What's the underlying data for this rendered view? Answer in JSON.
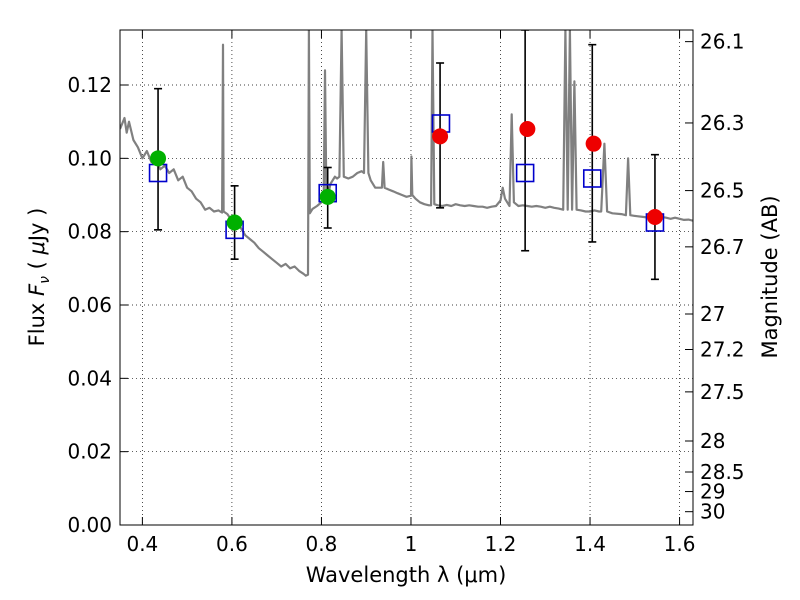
{
  "chart_data": {
    "type": "scatter",
    "xlabel": "Wavelength  λ (μm)",
    "ylabel": "Flux  F_ν  ( μJy )",
    "ylabel_parts": [
      "Flux  ",
      "F",
      "ν",
      "  ( ",
      "μ",
      "Jy )"
    ],
    "y2label": "Magnitude (AB)",
    "xlim": [
      0.35,
      1.63
    ],
    "ylim": [
      0.0,
      0.135
    ],
    "x_ticks": [
      0.4,
      0.6,
      0.8,
      1.0,
      1.2,
      1.4,
      1.6
    ],
    "x_tick_labels": [
      "0.4",
      "0.6",
      "0.8",
      "1",
      "1.2",
      "1.4",
      "1.6"
    ],
    "y_ticks": [
      0.0,
      0.02,
      0.04,
      0.06,
      0.08,
      0.1,
      0.12
    ],
    "y_tick_labels": [
      "0.00",
      "0.02",
      "0.04",
      "0.06",
      "0.08",
      "0.10",
      "0.12"
    ],
    "y2_ticks": [
      {
        "mag": 26.1,
        "label": "26.1"
      },
      {
        "mag": 26.3,
        "label": "26.3"
      },
      {
        "mag": 26.5,
        "label": "26.5"
      },
      {
        "mag": 26.7,
        "label": "26.7"
      },
      {
        "mag": 27.0,
        "label": "27"
      },
      {
        "mag": 27.2,
        "label": "27.2"
      },
      {
        "mag": 27.5,
        "label": "27.5"
      },
      {
        "mag": 28.0,
        "label": "28"
      },
      {
        "mag": 28.5,
        "label": "28.5"
      },
      {
        "mag": 29.0,
        "label": "29"
      },
      {
        "mag": 30.0,
        "label": "30"
      }
    ],
    "grid": true,
    "grid_style": "dotted",
    "template_spectrum": {
      "color": "#808080",
      "points": [
        [
          0.35,
          0.108
        ],
        [
          0.36,
          0.111
        ],
        [
          0.365,
          0.107
        ],
        [
          0.37,
          0.11
        ],
        [
          0.38,
          0.105
        ],
        [
          0.39,
          0.103
        ],
        [
          0.4,
          0.1
        ],
        [
          0.41,
          0.102
        ],
        [
          0.42,
          0.099
        ],
        [
          0.43,
          0.1
        ],
        [
          0.44,
          0.097
        ],
        [
          0.45,
          0.098
        ],
        [
          0.46,
          0.096
        ],
        [
          0.47,
          0.097
        ],
        [
          0.48,
          0.094
        ],
        [
          0.49,
          0.095
        ],
        [
          0.5,
          0.092
        ],
        [
          0.51,
          0.091
        ],
        [
          0.52,
          0.089
        ],
        [
          0.53,
          0.088
        ],
        [
          0.54,
          0.086
        ],
        [
          0.55,
          0.0865
        ],
        [
          0.56,
          0.0855
        ],
        [
          0.57,
          0.0858
        ],
        [
          0.578,
          0.0852
        ],
        [
          0.58,
          0.131
        ],
        [
          0.5815,
          0.0855
        ],
        [
          0.59,
          0.0848
        ],
        [
          0.6,
          0.083
        ],
        [
          0.61,
          0.082
        ],
        [
          0.62,
          0.081
        ],
        [
          0.63,
          0.079
        ],
        [
          0.64,
          0.078
        ],
        [
          0.65,
          0.077
        ],
        [
          0.66,
          0.0755
        ],
        [
          0.67,
          0.0745
        ],
        [
          0.68,
          0.0735
        ],
        [
          0.69,
          0.0725
        ],
        [
          0.7,
          0.0715
        ],
        [
          0.71,
          0.0705
        ],
        [
          0.72,
          0.0712
        ],
        [
          0.73,
          0.07
        ],
        [
          0.74,
          0.0705
        ],
        [
          0.75,
          0.0693
        ],
        [
          0.76,
          0.0685
        ],
        [
          0.765,
          0.068
        ],
        [
          0.77,
          0.0683
        ],
        [
          0.772,
          0.135
        ],
        [
          0.774,
          0.085
        ],
        [
          0.78,
          0.0862
        ],
        [
          0.79,
          0.087
        ],
        [
          0.8,
          0.088
        ],
        [
          0.805,
          0.0885
        ],
        [
          0.808,
          0.124
        ],
        [
          0.811,
          0.089
        ],
        [
          0.816,
          0.0905
        ],
        [
          0.82,
          0.093
        ],
        [
          0.83,
          0.095
        ],
        [
          0.835,
          0.0945
        ],
        [
          0.84,
          0.095
        ],
        [
          0.845,
          0.135
        ],
        [
          0.85,
          0.095
        ],
        [
          0.86,
          0.0945
        ],
        [
          0.87,
          0.095
        ],
        [
          0.88,
          0.096
        ],
        [
          0.89,
          0.0965
        ],
        [
          0.895,
          0.096
        ],
        [
          0.9,
          0.135
        ],
        [
          0.905,
          0.096
        ],
        [
          0.91,
          0.094
        ],
        [
          0.92,
          0.092
        ],
        [
          0.93,
          0.092
        ],
        [
          0.935,
          0.092
        ],
        [
          0.938,
          0.099
        ],
        [
          0.941,
          0.092
        ],
        [
          0.95,
          0.0915
        ],
        [
          0.96,
          0.091
        ],
        [
          0.97,
          0.0905
        ],
        [
          0.98,
          0.09
        ],
        [
          0.99,
          0.0895
        ],
        [
          1.0,
          0.0898
        ],
        [
          1.001,
          0.1005
        ],
        [
          1.003,
          0.09
        ],
        [
          1.01,
          0.089
        ],
        [
          1.02,
          0.088
        ],
        [
          1.03,
          0.0875
        ],
        [
          1.04,
          0.0872
        ],
        [
          1.045,
          0.0872
        ],
        [
          1.048,
          0.135
        ],
        [
          1.052,
          0.0875
        ],
        [
          1.06,
          0.0872
        ],
        [
          1.07,
          0.087
        ],
        [
          1.08,
          0.0873
        ],
        [
          1.09,
          0.087
        ],
        [
          1.1,
          0.0875
        ],
        [
          1.11,
          0.0872
        ],
        [
          1.12,
          0.087
        ],
        [
          1.13,
          0.0872
        ],
        [
          1.14,
          0.087
        ],
        [
          1.15,
          0.0868
        ],
        [
          1.16,
          0.0868
        ],
        [
          1.17,
          0.0865
        ],
        [
          1.18,
          0.0868
        ],
        [
          1.19,
          0.087
        ],
        [
          1.2,
          0.0885
        ],
        [
          1.205,
          0.092
        ],
        [
          1.21,
          0.089
        ],
        [
          1.22,
          0.087
        ],
        [
          1.225,
          0.112
        ],
        [
          1.23,
          0.088
        ],
        [
          1.24,
          0.087
        ],
        [
          1.25,
          0.0872
        ],
        [
          1.26,
          0.087
        ],
        [
          1.27,
          0.0868
        ],
        [
          1.28,
          0.087
        ],
        [
          1.29,
          0.0868
        ],
        [
          1.3,
          0.0865
        ],
        [
          1.31,
          0.0868
        ],
        [
          1.32,
          0.0865
        ],
        [
          1.33,
          0.0863
        ],
        [
          1.34,
          0.086
        ],
        [
          1.345,
          0.135
        ],
        [
          1.35,
          0.086
        ],
        [
          1.355,
          0.135
        ],
        [
          1.36,
          0.086
        ],
        [
          1.365,
          0.121
        ],
        [
          1.37,
          0.086
        ],
        [
          1.38,
          0.0858
        ],
        [
          1.39,
          0.0855
        ],
        [
          1.4,
          0.0855
        ],
        [
          1.41,
          0.0858
        ],
        [
          1.42,
          0.0855
        ],
        [
          1.425,
          0.0855
        ],
        [
          1.432,
          0.104
        ],
        [
          1.438,
          0.0855
        ],
        [
          1.45,
          0.085
        ],
        [
          1.47,
          0.0848
        ],
        [
          1.48,
          0.0845
        ],
        [
          1.485,
          0.1
        ],
        [
          1.49,
          0.0845
        ],
        [
          1.5,
          0.0843
        ],
        [
          1.52,
          0.084
        ],
        [
          1.53,
          0.0838
        ],
        [
          1.54,
          0.0842
        ],
        [
          1.55,
          0.0838
        ],
        [
          1.56,
          0.084
        ],
        [
          1.57,
          0.0838
        ],
        [
          1.58,
          0.0835
        ],
        [
          1.59,
          0.0838
        ],
        [
          1.6,
          0.0835
        ],
        [
          1.61,
          0.0832
        ],
        [
          1.62,
          0.0833
        ],
        [
          1.63,
          0.083
        ]
      ]
    },
    "error_bars": [
      {
        "x": 0.435,
        "low": 0.0805,
        "high": 0.119
      },
      {
        "x": 0.606,
        "low": 0.0725,
        "high": 0.0925
      },
      {
        "x": 0.814,
        "low": 0.081,
        "high": 0.0975
      },
      {
        "x": 1.065,
        "low": 0.0865,
        "high": 0.126
      },
      {
        "x": 1.255,
        "low": 0.0748,
        "high": 0.135
      },
      {
        "x": 1.405,
        "low": 0.0772,
        "high": 0.131
      },
      {
        "x": 1.545,
        "low": 0.067,
        "high": 0.101
      }
    ],
    "model_squares": {
      "color": "#0000cc",
      "points": [
        [
          0.435,
          0.096
        ],
        [
          0.606,
          0.0805
        ],
        [
          0.814,
          0.0905
        ],
        [
          1.067,
          0.1095
        ],
        [
          1.255,
          0.096
        ],
        [
          1.405,
          0.0945
        ],
        [
          1.545,
          0.0825
        ]
      ]
    },
    "observed_green": {
      "color": "#00b000",
      "points": [
        [
          0.435,
          0.1
        ],
        [
          0.606,
          0.0825
        ],
        [
          0.814,
          0.0895
        ]
      ]
    },
    "observed_red": {
      "color": "#ee0000",
      "points": [
        [
          1.065,
          0.106
        ],
        [
          1.26,
          0.108
        ],
        [
          1.408,
          0.104
        ],
        [
          1.545,
          0.084
        ]
      ]
    }
  }
}
